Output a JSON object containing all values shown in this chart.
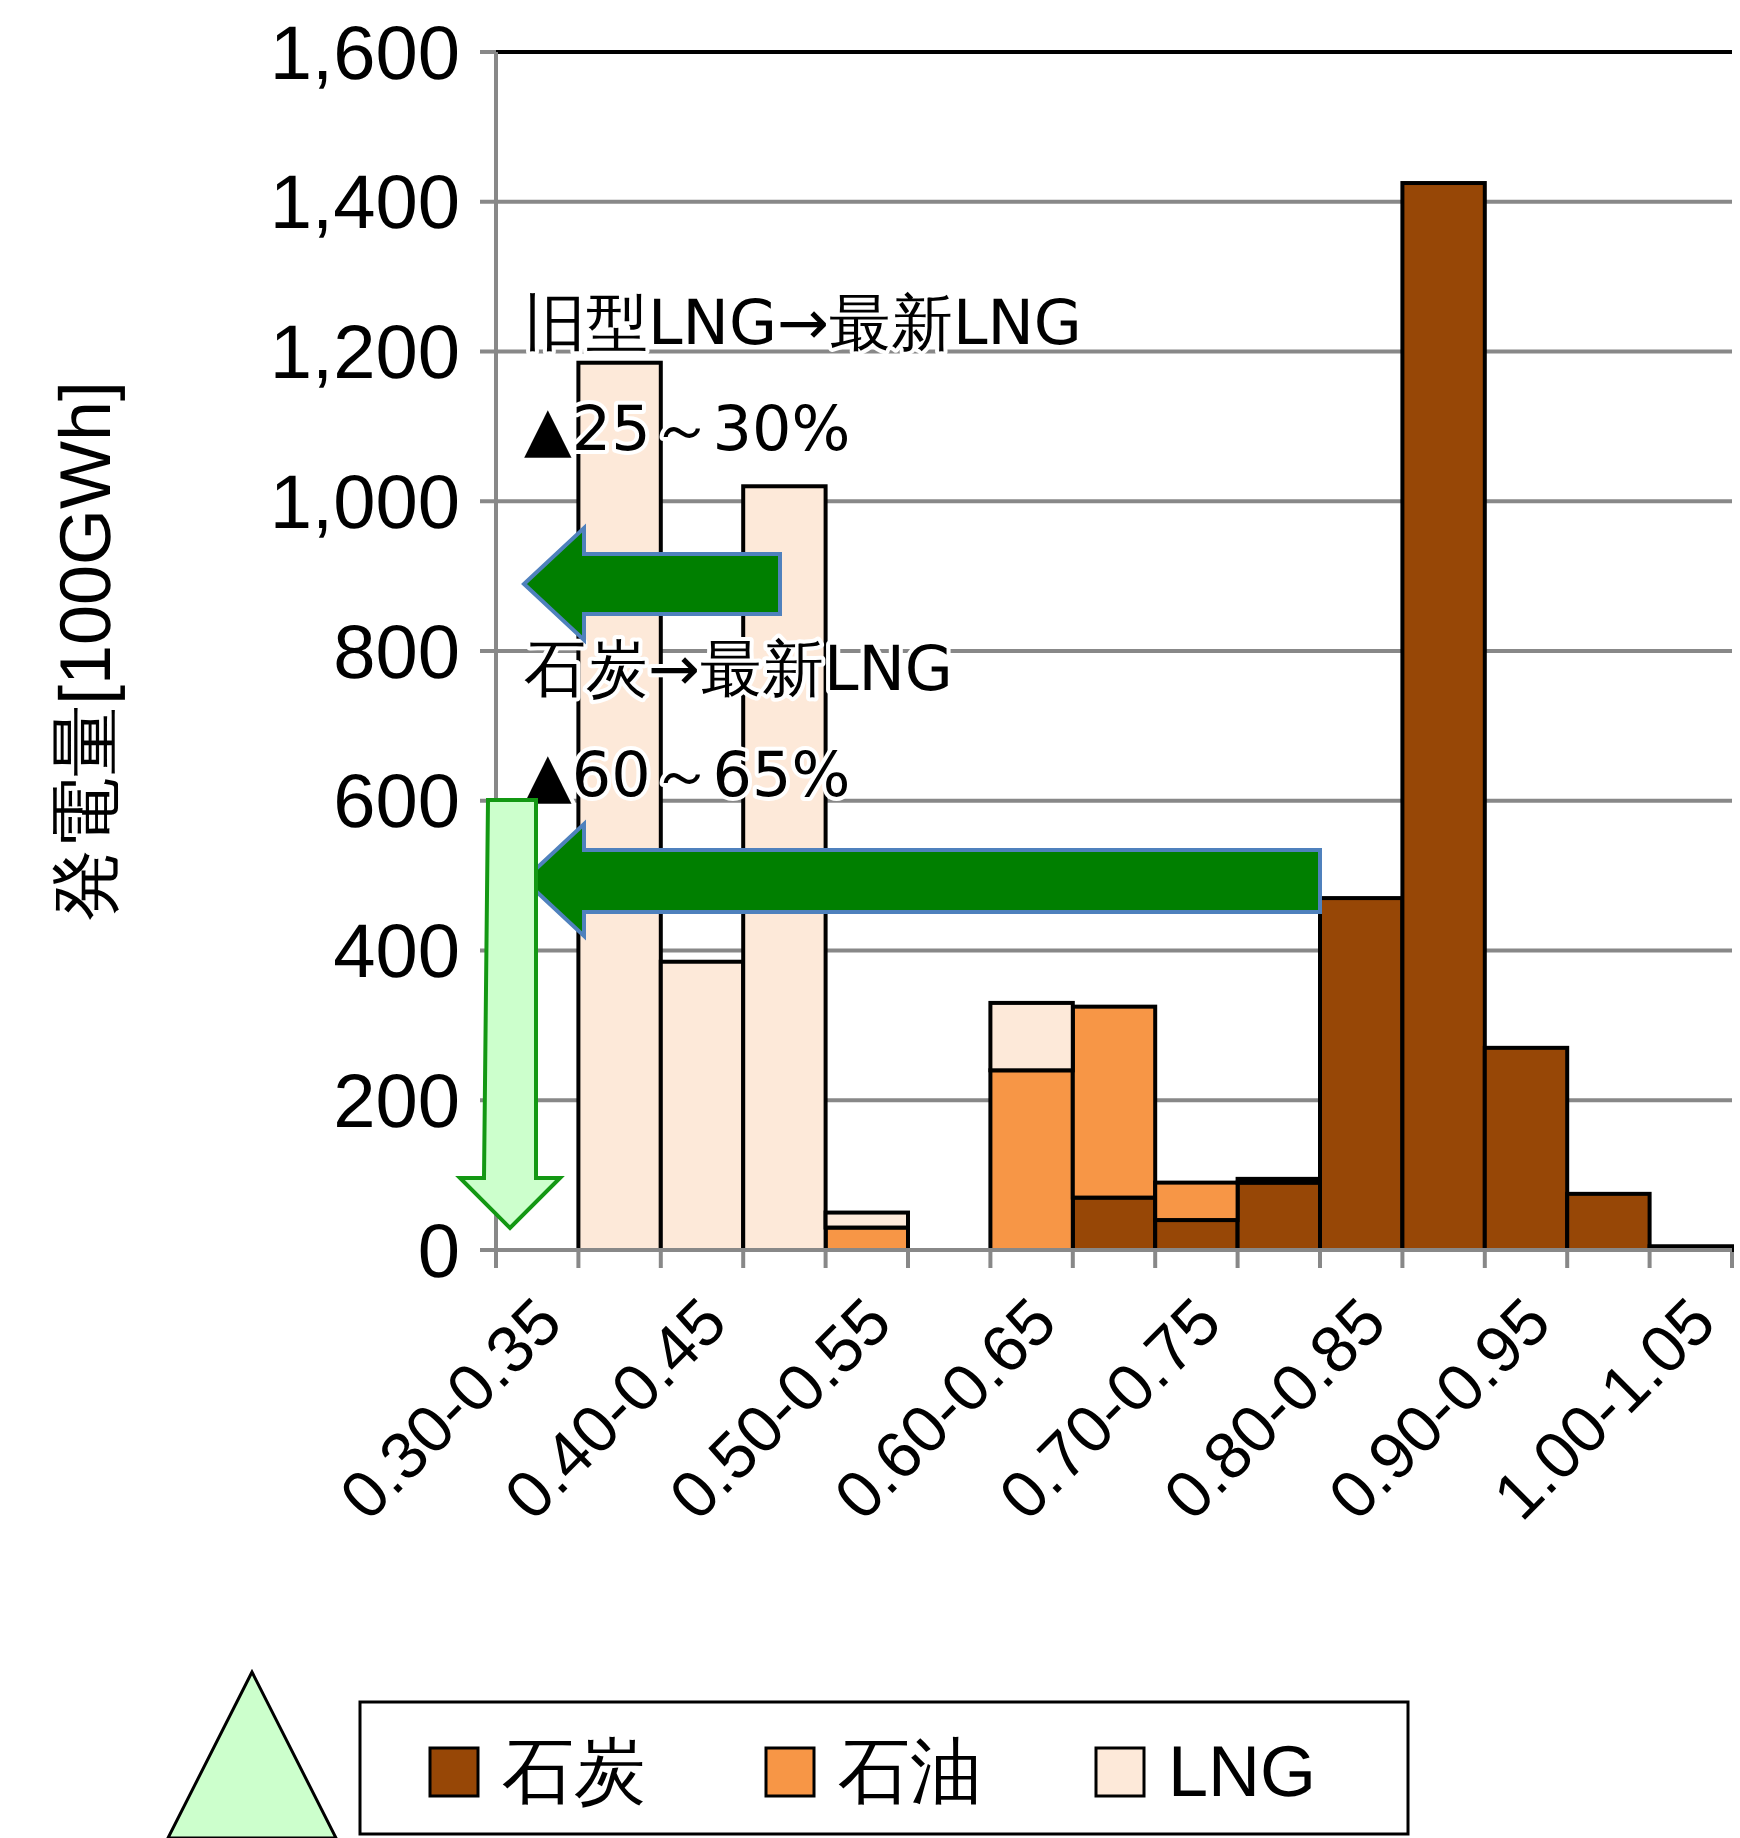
{
  "chart_data": {
    "type": "bar",
    "stacked": true,
    "ylabel": "発電量[100GWh]",
    "categories": [
      "0.30-0.35",
      null,
      "0.40-0.45",
      null,
      "0.50-0.55",
      null,
      "0.60-0.65",
      null,
      "0.70-0.75",
      null,
      "0.80-0.85",
      null,
      "0.90-0.95",
      null,
      "1.00-1.05"
    ],
    "series": [
      {
        "name": "石炭",
        "color": "#974706",
        "values": [
          null,
          null,
          null,
          null,
          null,
          null,
          null,
          70,
          40,
          90,
          470,
          1425,
          270,
          75,
          5
        ]
      },
      {
        "name": "石油",
        "color": "#f79646",
        "values": [
          null,
          null,
          null,
          null,
          30,
          null,
          240,
          255,
          50,
          5,
          null,
          null,
          null,
          null,
          null
        ]
      },
      {
        "name": "LNG",
        "color": "#fde9d9",
        "values": [
          null,
          1185,
          385,
          1020,
          20,
          null,
          90,
          null,
          null,
          null,
          null,
          null,
          null,
          null,
          null
        ]
      }
    ],
    "ylim": [
      0,
      1600
    ],
    "yticks": [
      0,
      200,
      400,
      600,
      800,
      {
        "value": 1000,
        "label": "1,000"
      },
      {
        "value": 1200,
        "label": "1,200"
      },
      {
        "value": 1400,
        "label": "1,400"
      },
      {
        "value": 1600,
        "label": "1,600"
      }
    ],
    "grid": "y",
    "legend": "bottom",
    "annotations": [
      "旧型LNG→最新LNG",
      "▲25～30%",
      "石炭→最新LNG",
      "▲60～65%"
    ]
  }
}
